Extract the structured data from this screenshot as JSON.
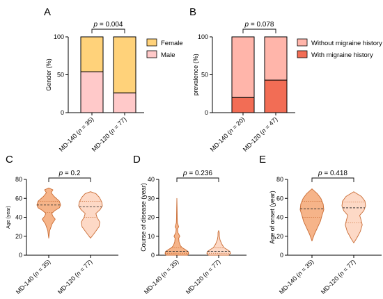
{
  "chart_data": [
    {
      "panel": "A",
      "type": "bar",
      "stacked": true,
      "percent": true,
      "ylabel": "Gender (%)",
      "ylim": [
        0,
        100
      ],
      "yticks": [
        "0",
        "50",
        "100"
      ],
      "categories": [
        "MD-140 (n = 35)",
        "MD-120 (n = 77)"
      ],
      "series": [
        {
          "name": "Male",
          "values": [
            54,
            26
          ],
          "color": "#ffc9c9"
        },
        {
          "name": "Female",
          "values": [
            46,
            74
          ],
          "color": "#ffd27a"
        }
      ],
      "legend": [
        "Female",
        "Male"
      ],
      "pvalue": "p = 0.004"
    },
    {
      "panel": "B",
      "type": "bar",
      "stacked": true,
      "percent": true,
      "ylabel": "prevalence (%)",
      "ylim": [
        0,
        100
      ],
      "yticks": [
        "0",
        "50",
        "100"
      ],
      "categories": [
        "MD-140 (n = 20)",
        "MD-120 (n = 47)"
      ],
      "series": [
        {
          "name": "With migraine history",
          "values": [
            20,
            43
          ],
          "color": "#f26d55"
        },
        {
          "name": "Without migraine history",
          "values": [
            80,
            57
          ],
          "color": "#ffb5aa"
        }
      ],
      "legend": [
        "Without migraine history",
        "With migraine history"
      ],
      "pvalue": "p = 0.078"
    },
    {
      "panel": "C",
      "type": "violin",
      "ylabel": "Age (year)",
      "ylim": [
        0,
        80
      ],
      "yticks": [
        "0",
        "20",
        "40",
        "60",
        "80"
      ],
      "categories": [
        "MD-140 (n = 35)",
        "MD-120 (n = 77)"
      ],
      "series": [
        {
          "name": "MD-140",
          "range": [
            18,
            71
          ],
          "median": 53,
          "quartiles": [
            45,
            57
          ],
          "profile": [
            [
              18,
              0
            ],
            [
              26,
              0.08
            ],
            [
              33,
              0.28
            ],
            [
              38,
              0.55
            ],
            [
              41,
              0.35
            ],
            [
              44,
              0.25
            ],
            [
              47,
              0.5
            ],
            [
              50,
              0.9
            ],
            [
              53,
              1.0
            ],
            [
              57,
              0.9
            ],
            [
              62,
              0.45
            ],
            [
              66,
              0.2
            ],
            [
              69,
              0.35
            ],
            [
              71,
              0
            ]
          ]
        },
        {
          "name": "MD-120",
          "range": [
            18,
            67
          ],
          "median": 51,
          "quartiles": [
            40,
            57
          ],
          "profile": [
            [
              18,
              0
            ],
            [
              22,
              0.25
            ],
            [
              30,
              0.72
            ],
            [
              35,
              0.78
            ],
            [
              40,
              0.55
            ],
            [
              44,
              0.45
            ],
            [
              48,
              0.8
            ],
            [
              52,
              1.0
            ],
            [
              56,
              0.95
            ],
            [
              61,
              0.75
            ],
            [
              65,
              0.45
            ],
            [
              67,
              0
            ]
          ]
        }
      ],
      "colors": [
        "#f6b489",
        "#fdd9c6"
      ],
      "pvalue": "p = 0.2"
    },
    {
      "panel": "D",
      "type": "violin",
      "ylabel": "Course of disease (year)",
      "ylim": [
        0,
        40
      ],
      "yticks": [
        "0",
        "10",
        "20",
        "30",
        "40"
      ],
      "categories": [
        "MD-140 (n = 35)",
        "MD-120 (n = 77)"
      ],
      "series": [
        {
          "name": "MD-140",
          "range": [
            0,
            30
          ],
          "median": 2,
          "quartiles": [
            1,
            4
          ],
          "profile": [
            [
              0,
              0.9
            ],
            [
              1,
              1.0
            ],
            [
              2,
              0.95
            ],
            [
              3,
              0.7
            ],
            [
              4,
              0.45
            ],
            [
              5,
              0.3
            ],
            [
              7,
              0.18
            ],
            [
              9,
              0.15
            ],
            [
              10,
              0.25
            ],
            [
              12,
              0.08
            ],
            [
              14,
              0.06
            ],
            [
              15,
              0.15
            ],
            [
              17,
              0.05
            ],
            [
              20,
              0.03
            ],
            [
              25,
              0.02
            ],
            [
              30,
              0
            ]
          ]
        },
        {
          "name": "MD-120",
          "range": [
            0,
            13
          ],
          "median": 2,
          "quartiles": [
            1,
            4
          ],
          "profile": [
            [
              0,
              0.85
            ],
            [
              1,
              1.0
            ],
            [
              2,
              0.95
            ],
            [
              3,
              0.7
            ],
            [
              4,
              0.45
            ],
            [
              6,
              0.25
            ],
            [
              8,
              0.12
            ],
            [
              10,
              0.06
            ],
            [
              12,
              0.05
            ],
            [
              13,
              0
            ]
          ]
        }
      ],
      "colors": [
        "#f6b489",
        "#fdd9c6"
      ],
      "pvalue": "p = 0.236"
    },
    {
      "panel": "E",
      "type": "violin",
      "ylabel": "Age of onset (year)",
      "ylim": [
        0,
        80
      ],
      "yticks": [
        "0",
        "20",
        "40",
        "60",
        "80"
      ],
      "categories": [
        "MD-140 (n = 35)",
        "MD-120 (n = 77)"
      ],
      "series": [
        {
          "name": "MD-140",
          "range": [
            15,
            70
          ],
          "median": 49,
          "quartiles": [
            40,
            57
          ],
          "profile": [
            [
              15,
              0
            ],
            [
              22,
              0.2
            ],
            [
              30,
              0.5
            ],
            [
              36,
              0.72
            ],
            [
              42,
              0.85
            ],
            [
              48,
              1.0
            ],
            [
              54,
              0.95
            ],
            [
              60,
              0.75
            ],
            [
              65,
              0.45
            ],
            [
              70,
              0
            ]
          ]
        },
        {
          "name": "MD-120",
          "range": [
            13,
            67
          ],
          "median": 50,
          "quartiles": [
            34,
            56
          ],
          "profile": [
            [
              13,
              0
            ],
            [
              18,
              0.25
            ],
            [
              25,
              0.55
            ],
            [
              32,
              0.72
            ],
            [
              38,
              0.6
            ],
            [
              42,
              0.5
            ],
            [
              47,
              0.85
            ],
            [
              52,
              1.0
            ],
            [
              57,
              0.95
            ],
            [
              62,
              0.65
            ],
            [
              67,
              0
            ]
          ]
        }
      ],
      "colors": [
        "#f6b489",
        "#fdd9c6"
      ],
      "pvalue": "p = 0.418"
    }
  ]
}
